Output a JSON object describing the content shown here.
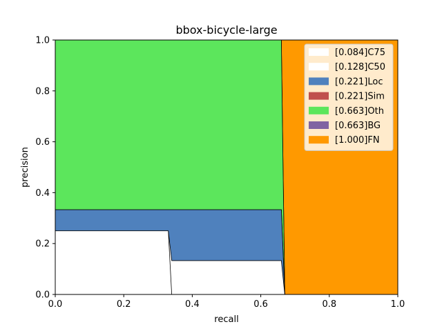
{
  "chart_data": {
    "type": "area",
    "title": "bbox-bicycle-large",
    "xlabel": "recall",
    "ylabel": "precision",
    "xlim": [
      0,
      1
    ],
    "ylim": [
      0,
      1
    ],
    "x_ticks": [
      "0.0",
      "0.2",
      "0.4",
      "0.6",
      "0.8",
      "1.0"
    ],
    "y_ticks": [
      "0.0",
      "0.2",
      "0.4",
      "0.6",
      "0.8",
      "1.0"
    ],
    "legend_position": "top-right",
    "series": [
      {
        "name": "[0.084]C75",
        "color": "#ffffff",
        "points": [
          [
            0,
            0.25
          ],
          [
            0.33,
            0.25
          ],
          [
            0.34,
            0
          ],
          [
            1,
            0
          ]
        ]
      },
      {
        "name": "[0.128]C50",
        "color": "#ffffff",
        "points": [
          [
            0,
            0.25
          ],
          [
            0.33,
            0.25
          ],
          [
            0.34,
            0.133
          ],
          [
            0.66,
            0.133
          ],
          [
            0.67,
            0
          ],
          [
            1,
            0
          ]
        ]
      },
      {
        "name": "[0.221]Loc",
        "color": "#4f81bd",
        "points": [
          [
            0,
            0.333
          ],
          [
            0.66,
            0.333
          ],
          [
            0.67,
            0
          ],
          [
            1,
            0
          ]
        ]
      },
      {
        "name": "[0.221]Sim",
        "color": "#c0504d",
        "points": [
          [
            0,
            0.333
          ],
          [
            0.66,
            0.333
          ],
          [
            0.67,
            0
          ],
          [
            1,
            0
          ]
        ]
      },
      {
        "name": "[0.663]Oth",
        "color": "#5ce65c",
        "points": [
          [
            0,
            1
          ],
          [
            0.66,
            1
          ],
          [
            0.67,
            0
          ],
          [
            1,
            0
          ]
        ]
      },
      {
        "name": "[0.663]BG",
        "color": "#8064a2",
        "points": [
          [
            0,
            1
          ],
          [
            0.66,
            1
          ],
          [
            0.67,
            0
          ],
          [
            1,
            0
          ]
        ]
      },
      {
        "name": "[1.000]FN",
        "color": "#ff9900",
        "points": [
          [
            0,
            1
          ],
          [
            1,
            1
          ]
        ]
      }
    ]
  }
}
